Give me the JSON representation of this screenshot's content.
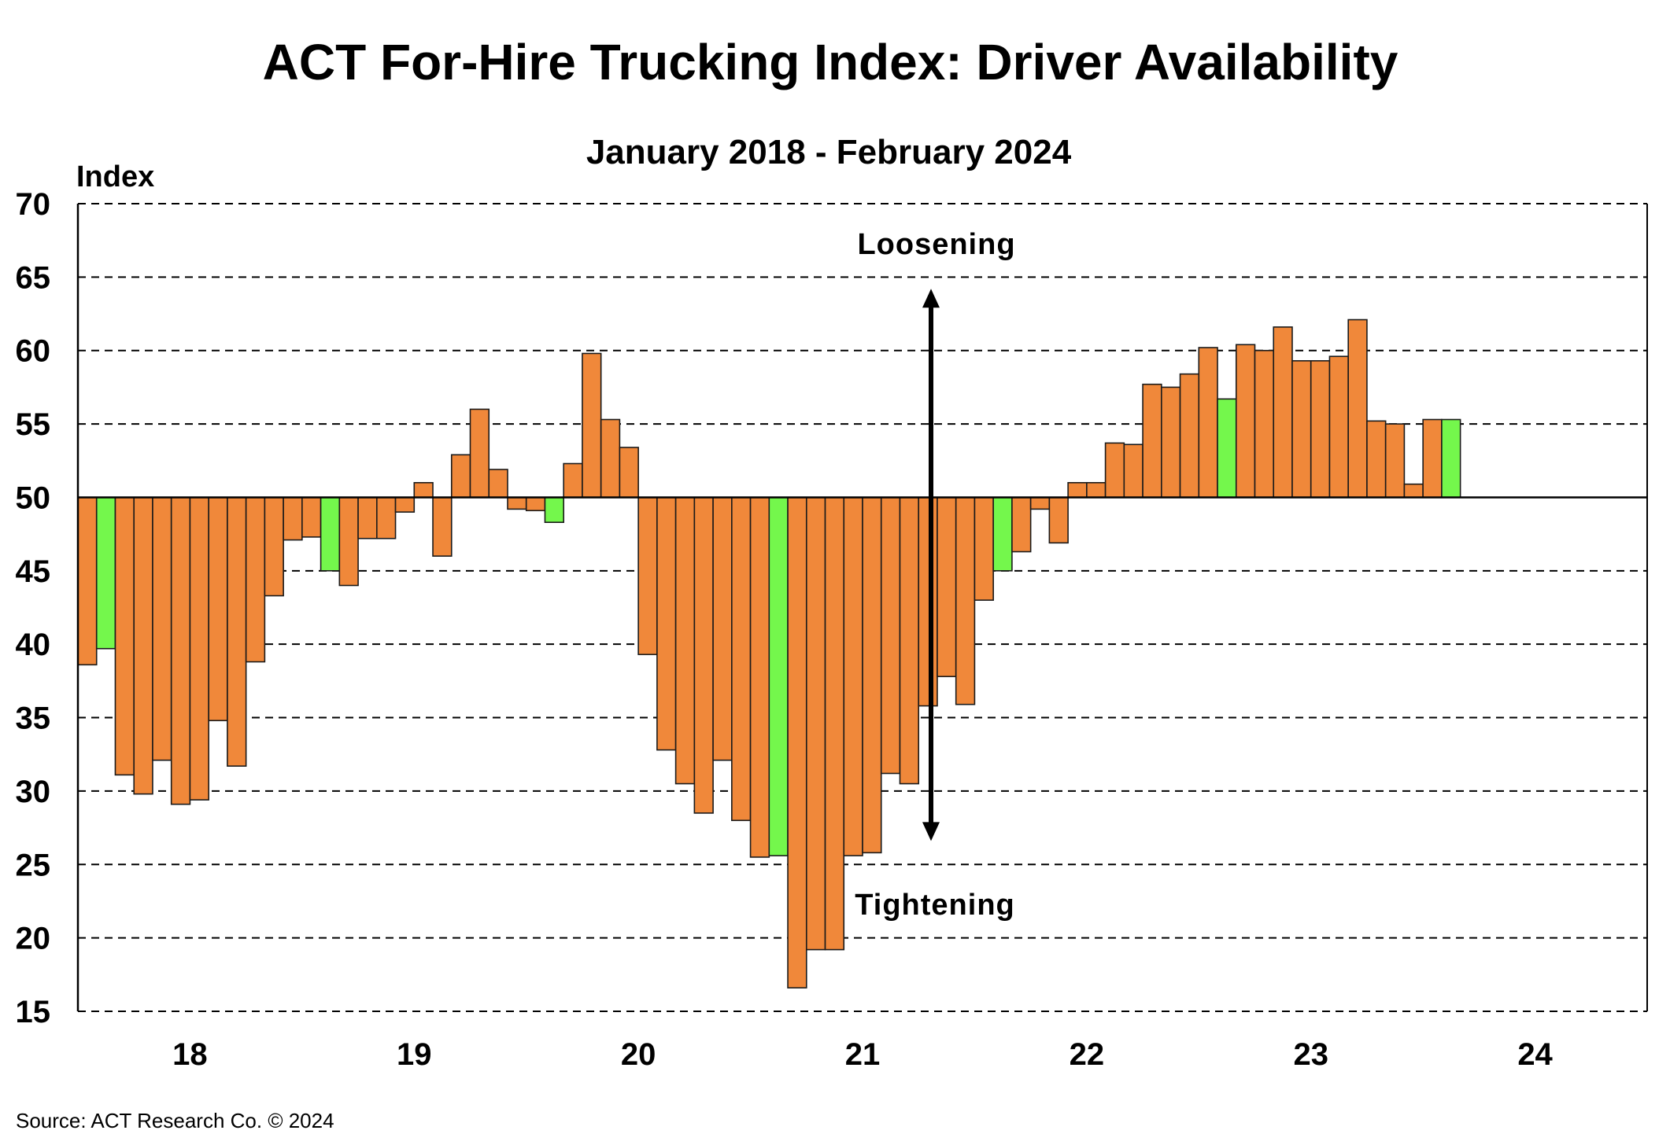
{
  "chart_data": {
    "type": "bar",
    "title": "ACT For-Hire Trucking Index: Driver Availability",
    "subtitle": "January 2018 - February 2024",
    "ylabel": "Index",
    "xlabel": "",
    "ylim": [
      15,
      70
    ],
    "baseline": 50,
    "yticks": [
      15,
      20,
      25,
      30,
      35,
      40,
      45,
      50,
      55,
      60,
      65,
      70
    ],
    "ytick_labels": [
      "15",
      "20",
      "25",
      "30",
      "35",
      "40",
      "45",
      "50",
      "55",
      "60",
      "65",
      "70"
    ],
    "xtick_labels": [
      "18",
      "19",
      "20",
      "21",
      "22",
      "23",
      "24"
    ],
    "grid": true,
    "start": "2018-01",
    "end": "2024-02",
    "highlight_month": "February",
    "colors": {
      "default": "#F0883A",
      "highlight": "#74F74C"
    },
    "series": [
      {
        "name": "Driver Availability Index",
        "values": [
          38.6,
          39.7,
          31.1,
          29.8,
          32.1,
          29.1,
          29.4,
          34.8,
          31.7,
          38.8,
          43.3,
          47.1,
          47.3,
          45.0,
          44.0,
          47.2,
          47.2,
          49.0,
          51.0,
          46.0,
          52.9,
          56.0,
          51.9,
          49.2,
          49.1,
          48.3,
          52.3,
          59.8,
          55.3,
          53.4,
          39.3,
          32.8,
          30.5,
          28.5,
          32.1,
          28.0,
          25.5,
          25.6,
          16.6,
          19.2,
          19.2,
          25.6,
          25.8,
          31.2,
          30.5,
          35.8,
          37.8,
          35.9,
          43.0,
          45.0,
          46.3,
          49.2,
          46.9,
          51.0,
          51.0,
          53.7,
          53.6,
          57.7,
          57.5,
          58.4,
          60.2,
          56.7,
          60.4,
          60.0,
          61.6,
          59.3,
          59.3,
          59.6,
          62.1,
          55.2,
          55.0,
          50.9,
          55.3,
          55.3
        ]
      }
    ],
    "annotations": [
      {
        "text": "Loosening",
        "arrow": "up"
      },
      {
        "text": "Tightening",
        "arrow": "down"
      }
    ],
    "arrow_range": [
      26.6,
      64.2
    ]
  },
  "source": "Source:  ACT Research  Co. © 2024"
}
